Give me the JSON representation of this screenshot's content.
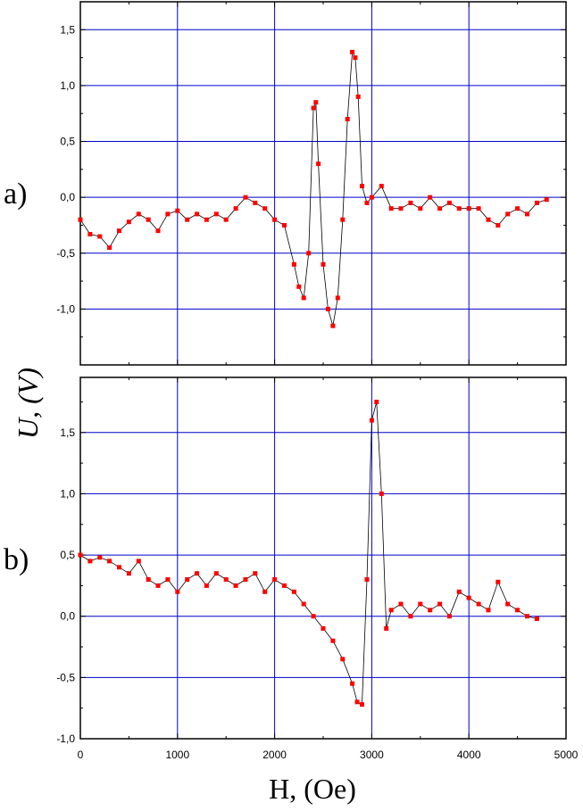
{
  "figure": {
    "ylabel": "U, (V)",
    "xlabel": "H, (Oe)"
  },
  "chart_data": [
    {
      "type": "line",
      "panel_label": "a)",
      "xlim": [
        0,
        5000
      ],
      "ylim": [
        -1.5,
        1.75
      ],
      "xticks": [
        0,
        1000,
        2000,
        3000,
        4000,
        5000
      ],
      "xtick_labels": [
        "",
        "",
        "",
        "",
        "",
        ""
      ],
      "yticks": [
        -1.0,
        -0.5,
        0.0,
        0.5,
        1.0,
        1.5
      ],
      "ytick_labels": [
        "-1,0",
        "-0,5",
        "0,0",
        "0,5",
        "1,0",
        "1,5"
      ],
      "grid": true,
      "marker_color": "#ff0000",
      "line_color": "#000000",
      "grid_color": "#0000cc",
      "x": [
        0,
        100,
        200,
        300,
        400,
        500,
        600,
        700,
        800,
        900,
        1000,
        1100,
        1200,
        1300,
        1400,
        1500,
        1600,
        1700,
        1800,
        1900,
        2000,
        2100,
        2200,
        2250,
        2300,
        2350,
        2400,
        2425,
        2450,
        2500,
        2550,
        2600,
        2650,
        2700,
        2750,
        2800,
        2830,
        2860,
        2900,
        2950,
        3000,
        3100,
        3200,
        3300,
        3400,
        3500,
        3600,
        3700,
        3800,
        3900,
        4000,
        4100,
        4200,
        4300,
        4400,
        4500,
        4600,
        4700,
        4800
      ],
      "y": [
        -0.2,
        -0.33,
        -0.35,
        -0.45,
        -0.3,
        -0.22,
        -0.15,
        -0.2,
        -0.3,
        -0.15,
        -0.12,
        -0.2,
        -0.15,
        -0.2,
        -0.15,
        -0.2,
        -0.1,
        0.0,
        -0.05,
        -0.1,
        -0.2,
        -0.25,
        -0.6,
        -0.8,
        -0.9,
        -0.5,
        0.8,
        0.85,
        0.3,
        -0.6,
        -1.0,
        -1.15,
        -0.9,
        -0.2,
        0.7,
        1.3,
        1.25,
        0.9,
        0.1,
        -0.05,
        0.0,
        0.1,
        -0.1,
        -0.1,
        -0.05,
        -0.1,
        0.0,
        -0.1,
        -0.05,
        -0.1,
        -0.1,
        -0.1,
        -0.2,
        -0.25,
        -0.15,
        -0.1,
        -0.15,
        -0.05,
        -0.02
      ]
    },
    {
      "type": "line",
      "panel_label": "b)",
      "xlim": [
        0,
        5000
      ],
      "ylim": [
        -1.0,
        1.95
      ],
      "xticks": [
        0,
        1000,
        2000,
        3000,
        4000,
        5000
      ],
      "xtick_labels": [
        "0",
        "1000",
        "2000",
        "3000",
        "4000",
        "5000"
      ],
      "yticks": [
        -1.0,
        -0.5,
        0.0,
        0.5,
        1.0,
        1.5
      ],
      "ytick_labels": [
        "-1,0",
        "-0,5",
        "0,0",
        "0,5",
        "1,0",
        "1,5"
      ],
      "grid": true,
      "marker_color": "#ff0000",
      "line_color": "#000000",
      "grid_color": "#0000cc",
      "x": [
        0,
        100,
        200,
        300,
        400,
        500,
        600,
        700,
        800,
        900,
        1000,
        1100,
        1200,
        1300,
        1400,
        1500,
        1600,
        1700,
        1800,
        1900,
        2000,
        2100,
        2200,
        2300,
        2400,
        2500,
        2600,
        2700,
        2800,
        2850,
        2900,
        2950,
        3000,
        3050,
        3100,
        3150,
        3200,
        3300,
        3400,
        3500,
        3600,
        3700,
        3800,
        3900,
        4000,
        4100,
        4200,
        4300,
        4400,
        4500,
        4600,
        4700
      ],
      "y": [
        0.5,
        0.45,
        0.48,
        0.45,
        0.4,
        0.35,
        0.45,
        0.3,
        0.25,
        0.3,
        0.2,
        0.3,
        0.35,
        0.25,
        0.35,
        0.3,
        0.25,
        0.3,
        0.35,
        0.2,
        0.3,
        0.25,
        0.2,
        0.1,
        0.0,
        -0.1,
        -0.2,
        -0.35,
        -0.55,
        -0.7,
        -0.72,
        0.3,
        1.6,
        1.75,
        1.0,
        -0.1,
        0.05,
        0.1,
        0.0,
        0.1,
        0.05,
        0.1,
        0.0,
        0.2,
        0.15,
        0.1,
        0.05,
        0.28,
        0.1,
        0.05,
        0.0,
        -0.02
      ]
    }
  ]
}
